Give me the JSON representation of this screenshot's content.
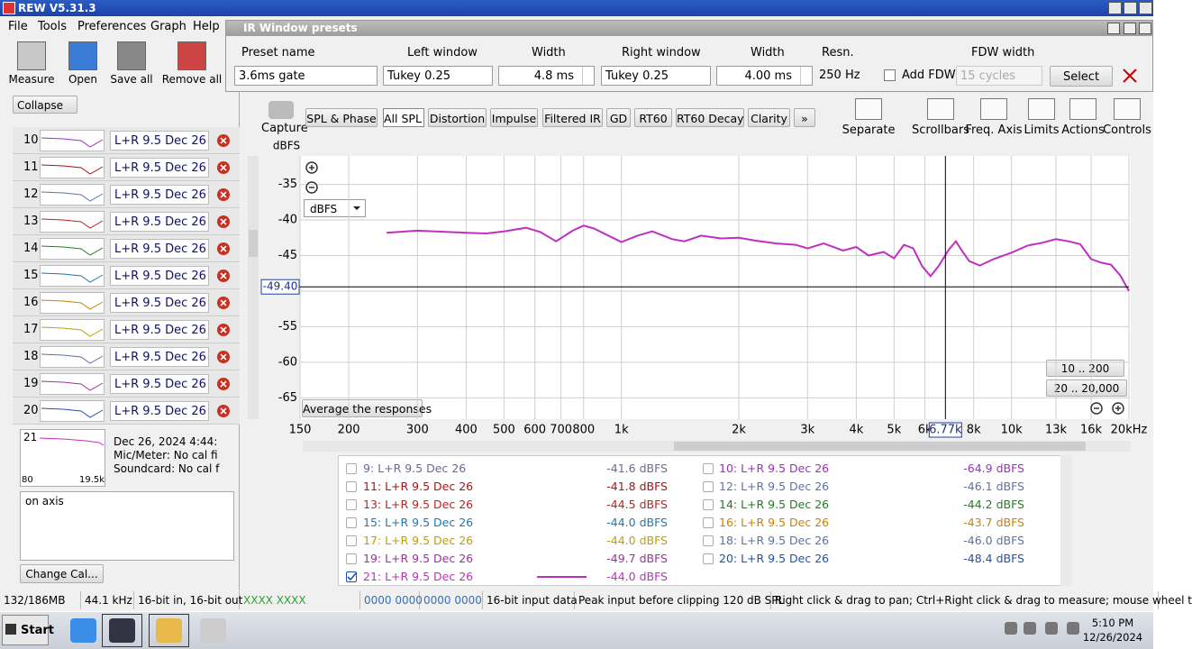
{
  "window_title": "REW V5.31.3",
  "menu": [
    "File",
    "Tools",
    "Preferences",
    "Graph",
    "Help"
  ],
  "toolbar": [
    "Measure",
    "Open",
    "Save all",
    "Remove all"
  ],
  "dialog": {
    "title": "IR Window presets",
    "fields": [
      {
        "label": "Preset name",
        "value": "3.6ms gate"
      },
      {
        "label": "Left window",
        "value": "Tukey 0.25"
      },
      {
        "label": "Width",
        "value": "4.8 ms"
      },
      {
        "label": "Right window",
        "value": "Tukey 0.25"
      },
      {
        "label": "Width",
        "value": "4.00 ms"
      },
      {
        "label": "Resn.",
        "value": "250 Hz"
      }
    ],
    "fdw": {
      "label": "FDW width",
      "checkbox": "Add FDW",
      "value": "15 cycles"
    },
    "select": "Select"
  },
  "sidebar": {
    "collapse": "Collapse",
    "rows": [
      {
        "index": "10",
        "name": "L+R 9.5 Dec 26",
        "color": "#9b30c0"
      },
      {
        "index": "11",
        "name": "L+R 9.5 Dec 26",
        "color": "#b01010"
      },
      {
        "index": "12",
        "name": "L+R 9.5 Dec 26",
        "color": "#6070b0"
      },
      {
        "index": "13",
        "name": "L+R 9.5 Dec 26",
        "color": "#c02020"
      },
      {
        "index": "14",
        "name": "L+R 9.5 Dec 26",
        "color": "#208020"
      },
      {
        "index": "15",
        "name": "L+R 9.5 Dec 26",
        "color": "#1f77b4"
      },
      {
        "index": "16",
        "name": "L+R 9.5 Dec 26",
        "color": "#d08000"
      },
      {
        "index": "17",
        "name": "L+R 9.5 Dec 26",
        "color": "#c0a000"
      },
      {
        "index": "18",
        "name": "L+R 9.5 Dec 26",
        "color": "#6070a0"
      },
      {
        "index": "19",
        "name": "L+R 9.5 Dec 26",
        "color": "#a030a0"
      },
      {
        "index": "20",
        "name": "L+R 9.5 Dec 26",
        "color": "#2050b0"
      }
    ],
    "detail": {
      "index": "21",
      "low": "80",
      "high": "19.5k",
      "lines": [
        "Dec 26, 2024 4:44:",
        "Mic/Meter: No cal fi",
        "Soundcard: No cal f"
      ]
    },
    "notes": "on axis",
    "change_cal": "Change Cal..."
  },
  "graph_toolbar": {
    "capture": "Capture",
    "tabs": [
      "SPL & Phase",
      "All SPL",
      "Distortion",
      "Impulse",
      "Filtered IR",
      "GD",
      "RT60",
      "RT60 Decay",
      "Clarity",
      "»"
    ],
    "tools": [
      "Separate",
      "Scrollbars",
      "Freq. Axis",
      "Limits",
      "Actions",
      "Controls"
    ]
  },
  "graph": {
    "type": "line",
    "y_label": "dBFS",
    "unit_select": "dBFS",
    "log_x": true,
    "xlim": [
      150,
      20000
    ],
    "ylim": [
      -31,
      -68
    ],
    "xticks": [
      150,
      200,
      300,
      400,
      500,
      600,
      700,
      800,
      {
        "value": 1000,
        "label": "1k"
      },
      {
        "value": 2000,
        "label": "2k"
      },
      {
        "value": 3000,
        "label": "3k"
      },
      {
        "value": 4000,
        "label": "4k"
      },
      {
        "value": 5000,
        "label": "5k"
      },
      {
        "value": 6000,
        "label": "6k"
      },
      {
        "value": 8000,
        "label": "8k"
      },
      {
        "value": 10000,
        "label": "10k"
      },
      {
        "value": 13000,
        "label": "13k"
      },
      {
        "value": 16000,
        "label": "16k"
      },
      {
        "value": 20000,
        "label": "20kHz"
      }
    ],
    "yticks": [
      -35,
      -40,
      -45,
      -50,
      -55,
      -60,
      -65
    ],
    "grid": true,
    "series": {
      "color": "#c030c0",
      "x": [
        250,
        300,
        400,
        450,
        500,
        570,
        620,
        680,
        750,
        800,
        850,
        950,
        1000,
        1100,
        1200,
        1350,
        1450,
        1600,
        1800,
        2000,
        2200,
        2500,
        2800,
        3000,
        3300,
        3700,
        4000,
        4300,
        4700,
        5000,
        5300,
        5600,
        5900,
        6200,
        6500,
        6900,
        7200,
        7500,
        7800,
        8300,
        9000,
        10000,
        11000,
        12000,
        13000,
        14000,
        15000,
        16000,
        17000,
        18000,
        19000,
        20000
      ],
      "values": [
        -41.8,
        -41.5,
        -41.8,
        -41.9,
        -41.6,
        -41.1,
        -41.7,
        -43.0,
        -41.5,
        -40.8,
        -41.2,
        -42.5,
        -43.1,
        -42.2,
        -41.6,
        -42.7,
        -43.0,
        -42.2,
        -42.6,
        -42.5,
        -42.9,
        -43.3,
        -43.5,
        -44.0,
        -43.3,
        -44.3,
        -43.8,
        -45.0,
        -44.5,
        -45.4,
        -43.5,
        -44.0,
        -46.5,
        -47.9,
        -46.5,
        -44.2,
        -43.0,
        -44.5,
        -45.8,
        -46.4,
        -45.5,
        -44.6,
        -43.6,
        -43.2,
        -42.7,
        -43.0,
        -43.4,
        -45.5,
        -46.0,
        -46.3,
        -47.8,
        -50.0
      ]
    },
    "cursor_x": {
      "value": 6770,
      "label": "6.77k"
    },
    "cursor_y": {
      "value": -49.4,
      "label": "-49.40"
    },
    "average": "Average the responses",
    "ranges": [
      "10 .. 200",
      "20 .. 20,000"
    ]
  },
  "legend": [
    {
      "label": "9: L+R 9.5 Dec 26",
      "value": "-41.6 dBFS",
      "color": "#6a6a9a",
      "checked": false
    },
    {
      "label": "10: L+R 9.5 Dec 26",
      "value": "-64.9 dBFS",
      "color": "#9b30c0",
      "checked": false
    },
    {
      "label": "11: L+R 9.5 Dec 26",
      "value": "-41.8 dBFS",
      "color": "#b01010",
      "checked": false
    },
    {
      "label": "12: L+R 9.5 Dec 26",
      "value": "-46.1 dBFS",
      "color": "#6070b0",
      "checked": false
    },
    {
      "label": "13: L+R 9.5 Dec 26",
      "value": "-44.5 dBFS",
      "color": "#c02020",
      "checked": false
    },
    {
      "label": "14: L+R 9.5 Dec 26",
      "value": "-44.2 dBFS",
      "color": "#208020",
      "checked": false
    },
    {
      "label": "15: L+R 9.5 Dec 26",
      "value": "-44.0 dBFS",
      "color": "#1f77b4",
      "checked": false
    },
    {
      "label": "16: L+R 9.5 Dec 26",
      "value": "-43.7 dBFS",
      "color": "#d08000",
      "checked": false
    },
    {
      "label": "17: L+R 9.5 Dec 26",
      "value": "-44.0 dBFS",
      "color": "#c0a000",
      "checked": false
    },
    {
      "label": "18: L+R 9.5 Dec 26",
      "value": "-46.0 dBFS",
      "color": "#6070a0",
      "checked": false
    },
    {
      "label": "19: L+R 9.5 Dec 26",
      "value": "-49.7 dBFS",
      "color": "#a030a0",
      "checked": false
    },
    {
      "label": "20: L+R 9.5 Dec 26",
      "value": "-48.4 dBFS",
      "color": "#2050b0",
      "checked": false
    },
    {
      "label": "21: L+R 9.5 Dec 26",
      "value": "-44.0 dBFS",
      "color": "#c030c0",
      "checked": true
    }
  ],
  "status": [
    {
      "text": "132/186MB",
      "color": "#000"
    },
    {
      "text": "44.1 kHz",
      "color": "#000"
    },
    {
      "text": "16-bit in, 16-bit out",
      "color": "#000"
    },
    {
      "text": "XXXX XXXX",
      "color": "#30a030"
    },
    {
      "text": "0000 0000",
      "color": "#3070c0"
    },
    {
      "text": "0000 0000",
      "color": "#3070c0"
    },
    {
      "text": "16-bit input data",
      "color": "#000"
    },
    {
      "text": "Peak input before clipping 120 dB SPL",
      "color": "#000"
    },
    {
      "text": "Right click & drag to pan; Ctrl+Right click & drag to measure; mouse wheel t",
      "color": "#000"
    }
  ],
  "taskbar": {
    "start": "Start",
    "time": "5:10 PM",
    "date": "12/26/2024"
  }
}
